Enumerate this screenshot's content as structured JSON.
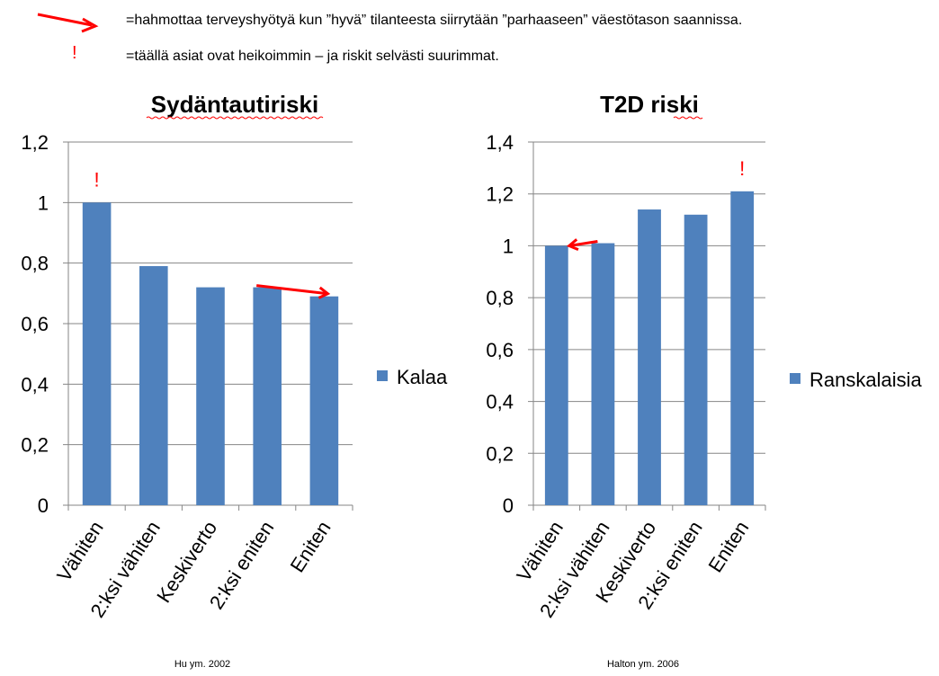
{
  "header": {
    "arrow_note": "=hahmottaa terveyshyötyä kun ”hyvä” tilanteesta siirrytään ”parhaaseen” väestötason saannissa.",
    "exclaim_symbol": "!",
    "exclaim_note": "=täällä asiat ovat heikoimmin – ja riskit selvästi suurimmat."
  },
  "colors": {
    "bar": "#4f81bd",
    "annotation": "#ff0000",
    "grid": "#868686"
  },
  "chart_data": [
    {
      "type": "bar",
      "title": "Sydäntautiriski",
      "categories": [
        "Vähiten",
        "2:ksi vähiten",
        "Keskiverto",
        "2:ksi eniten",
        "Eniten"
      ],
      "series": [
        {
          "name": "Kalaa",
          "values": [
            1.0,
            0.79,
            0.72,
            0.72,
            0.69
          ]
        }
      ],
      "ylim": [
        0,
        1.2
      ],
      "yticks": [
        0,
        0.2,
        0.4,
        0.6,
        0.8,
        1,
        1.2
      ],
      "ytick_labels": [
        "0",
        "0,2",
        "0,4",
        "0,6",
        "0,8",
        "1",
        "1,2"
      ],
      "xlabel": "",
      "ylabel": "",
      "grid": true,
      "legend": "right",
      "source": "Hu ym. 2002",
      "annotations": {
        "exclaim_on": "Vähiten",
        "arrow_from": "2:ksi eniten",
        "arrow_to": "Eniten"
      }
    },
    {
      "type": "bar",
      "title": "T2D riski",
      "categories": [
        "Vähiten",
        "2:ksi vähiten",
        "Keskiverto",
        "2:ksi eniten",
        "Eniten"
      ],
      "series": [
        {
          "name": "Ranskalaisia",
          "values": [
            1.0,
            1.01,
            1.14,
            1.12,
            1.21
          ]
        }
      ],
      "ylim": [
        0,
        1.4
      ],
      "yticks": [
        0,
        0.2,
        0.4,
        0.6,
        0.8,
        1,
        1.2,
        1.4
      ],
      "ytick_labels": [
        "0",
        "0,2",
        "0,4",
        "0,6",
        "0,8",
        "1",
        "1,2",
        "1,4"
      ],
      "xlabel": "",
      "ylabel": "",
      "grid": true,
      "legend": "right",
      "source": "Halton ym. 2006",
      "annotations": {
        "exclaim_on": "Eniten",
        "arrow_from": "2:ksi vähiten",
        "arrow_to": "Vähiten"
      }
    }
  ]
}
